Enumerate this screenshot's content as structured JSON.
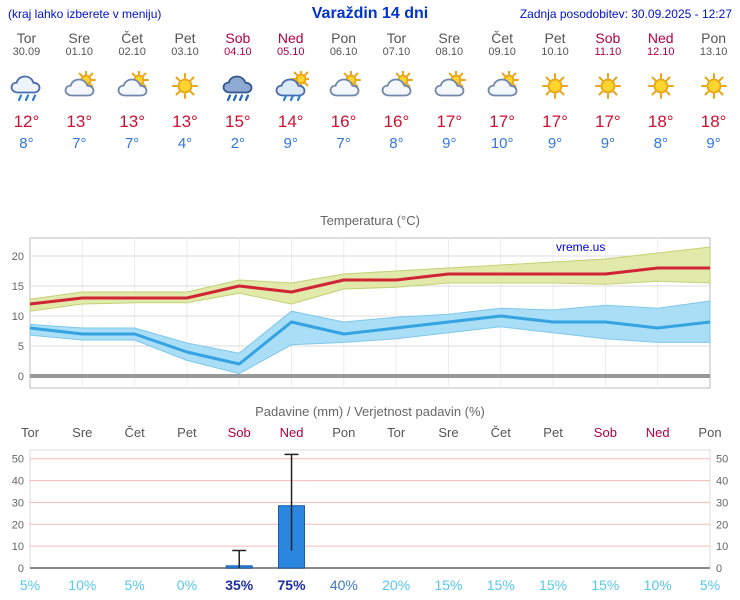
{
  "header": {
    "hint": "(kraj lahko izberete v meniju)",
    "title": "Varaždin 14 dni",
    "updated": "Zadnja posodobitev: 30.09.2025 - 12:27"
  },
  "watermark": "vreme.us",
  "colors": {
    "header_blue": "#0011cc",
    "title_blue": "#0033cc",
    "weekday_gray": "#555555",
    "weekend_red": "#b30042",
    "tmax_red": "#cc1133",
    "tmin_blue": "#3377dd",
    "line_red": "#d02535",
    "band_green": "#dfe8a6",
    "band_green_edge": "#c2d273",
    "line_blue": "#35a2e2",
    "band_blue": "#a4dcf5",
    "band_blue_edge": "#7fc8ea",
    "zero_gray": "#999999",
    "grid_pink": "#f2bcbc",
    "bar_blue": "#2b86e0",
    "bar_blue_edge": "#1b5fae",
    "pct_low": "#55c8ee",
    "pct_mid": "#3a78cc",
    "pct_high": "#1c2fa0"
  },
  "days": [
    {
      "wd": "Tor",
      "date": "30.09",
      "icon": "rain",
      "tmax": "12°",
      "tmin": "8°",
      "weekend": false,
      "pct": "5%",
      "pct_level": "low"
    },
    {
      "wd": "Sre",
      "date": "01.10",
      "icon": "sun-cloud",
      "tmax": "13°",
      "tmin": "7°",
      "weekend": false,
      "pct": "10%",
      "pct_level": "low"
    },
    {
      "wd": "Čet",
      "date": "02.10",
      "icon": "sun-cloud",
      "tmax": "13°",
      "tmin": "7°",
      "weekend": false,
      "pct": "5%",
      "pct_level": "low"
    },
    {
      "wd": "Pet",
      "date": "03.10",
      "icon": "sun",
      "tmax": "13°",
      "tmin": "4°",
      "weekend": false,
      "pct": "0%",
      "pct_level": "low"
    },
    {
      "wd": "Sob",
      "date": "04.10",
      "icon": "heavy-rain",
      "tmax": "15°",
      "tmin": "2°",
      "weekend": true,
      "pct": "35%",
      "pct_level": "high"
    },
    {
      "wd": "Ned",
      "date": "05.10",
      "icon": "rain-sun",
      "tmax": "14°",
      "tmin": "9°",
      "weekend": true,
      "pct": "75%",
      "pct_level": "high"
    },
    {
      "wd": "Pon",
      "date": "06.10",
      "icon": "sun-cloud",
      "tmax": "16°",
      "tmin": "7°",
      "weekend": false,
      "pct": "40%",
      "pct_level": "mid"
    },
    {
      "wd": "Tor",
      "date": "07.10",
      "icon": "sun-cloud",
      "tmax": "16°",
      "tmin": "8°",
      "weekend": false,
      "pct": "20%",
      "pct_level": "low"
    },
    {
      "wd": "Sre",
      "date": "08.10",
      "icon": "sun-cloud",
      "tmax": "17°",
      "tmin": "9°",
      "weekend": false,
      "pct": "15%",
      "pct_level": "low"
    },
    {
      "wd": "Čet",
      "date": "09.10",
      "icon": "sun-cloud",
      "tmax": "17°",
      "tmin": "10°",
      "weekend": false,
      "pct": "15%",
      "pct_level": "low"
    },
    {
      "wd": "Pet",
      "date": "10.10",
      "icon": "sun",
      "tmax": "17°",
      "tmin": "9°",
      "weekend": false,
      "pct": "15%",
      "pct_level": "low"
    },
    {
      "wd": "Sob",
      "date": "11.10",
      "icon": "sun",
      "tmax": "17°",
      "tmin": "9°",
      "weekend": true,
      "pct": "15%",
      "pct_level": "low"
    },
    {
      "wd": "Ned",
      "date": "12.10",
      "icon": "sun",
      "tmax": "18°",
      "tmin": "8°",
      "weekend": true,
      "pct": "10%",
      "pct_level": "low"
    },
    {
      "wd": "Pon",
      "date": "13.10",
      "icon": "sun",
      "tmax": "18°",
      "tmin": "9°",
      "weekend": false,
      "pct": "5%",
      "pct_level": "low"
    }
  ],
  "chart_data": [
    {
      "type": "line",
      "title": "Temperatura (°C)",
      "x_labels": [
        "Tor",
        "Sre",
        "Čet",
        "Pet",
        "Sob",
        "Ned",
        "Pon",
        "Tor",
        "Sre",
        "Čet",
        "Pet",
        "Sob",
        "Ned",
        "Pon"
      ],
      "ylim": [
        -2,
        23
      ],
      "yticks": [
        0,
        5,
        10,
        15,
        20
      ],
      "series": [
        {
          "name": "tmax",
          "values": [
            12,
            13,
            13,
            13,
            15,
            14,
            16,
            16,
            17,
            17,
            17,
            17,
            18,
            18
          ]
        },
        {
          "name": "tmin",
          "values": [
            8,
            7,
            7,
            4,
            2,
            9,
            7,
            8,
            9,
            10,
            9,
            9,
            8,
            9
          ]
        },
        {
          "name": "tmax_upper",
          "values": [
            12.8,
            14,
            14,
            14,
            16,
            15.5,
            17,
            17.5,
            18,
            18.5,
            19,
            19.5,
            20.5,
            21.5
          ]
        },
        {
          "name": "tmax_lower",
          "values": [
            10.8,
            12,
            12.2,
            12.2,
            13.8,
            12,
            14.5,
            14.8,
            15.5,
            15.5,
            15.5,
            15.3,
            15.8,
            15.5
          ]
        },
        {
          "name": "tmin_upper",
          "values": [
            8.6,
            8,
            8,
            5.5,
            3.8,
            10.8,
            9,
            9.8,
            10.3,
            11.3,
            11,
            11.8,
            11.3,
            12.5
          ]
        },
        {
          "name": "tmin_lower",
          "values": [
            6.8,
            6,
            6,
            2.6,
            0.4,
            5.2,
            5.6,
            6.2,
            7.2,
            8.2,
            7.2,
            6.2,
            5.6,
            5.6
          ]
        }
      ]
    },
    {
      "type": "bar",
      "title": "Padavine (mm) / Verjetnost padavin (%)",
      "categories": [
        "Tor",
        "Sre",
        "Čet",
        "Pet",
        "Sob",
        "Ned",
        "Pon",
        "Tor",
        "Sre",
        "Čet",
        "Pet",
        "Sob",
        "Ned",
        "Pon"
      ],
      "values": [
        0,
        0,
        0,
        0,
        1,
        28.5,
        0,
        0,
        0,
        0,
        0,
        0,
        0,
        0
      ],
      "whisker_low": [
        0,
        0,
        0,
        0,
        0,
        8,
        0,
        0,
        0,
        0,
        0,
        0,
        0,
        0
      ],
      "whisker_high": [
        0,
        0,
        0,
        0,
        8,
        52,
        0,
        0,
        0,
        0,
        0,
        0,
        0,
        0
      ],
      "probability_pct": [
        5,
        10,
        5,
        0,
        35,
        75,
        40,
        20,
        15,
        15,
        15,
        15,
        10,
        5
      ],
      "ylim": [
        0,
        54
      ],
      "yticks": [
        0,
        10,
        20,
        30,
        40,
        50
      ]
    }
  ]
}
